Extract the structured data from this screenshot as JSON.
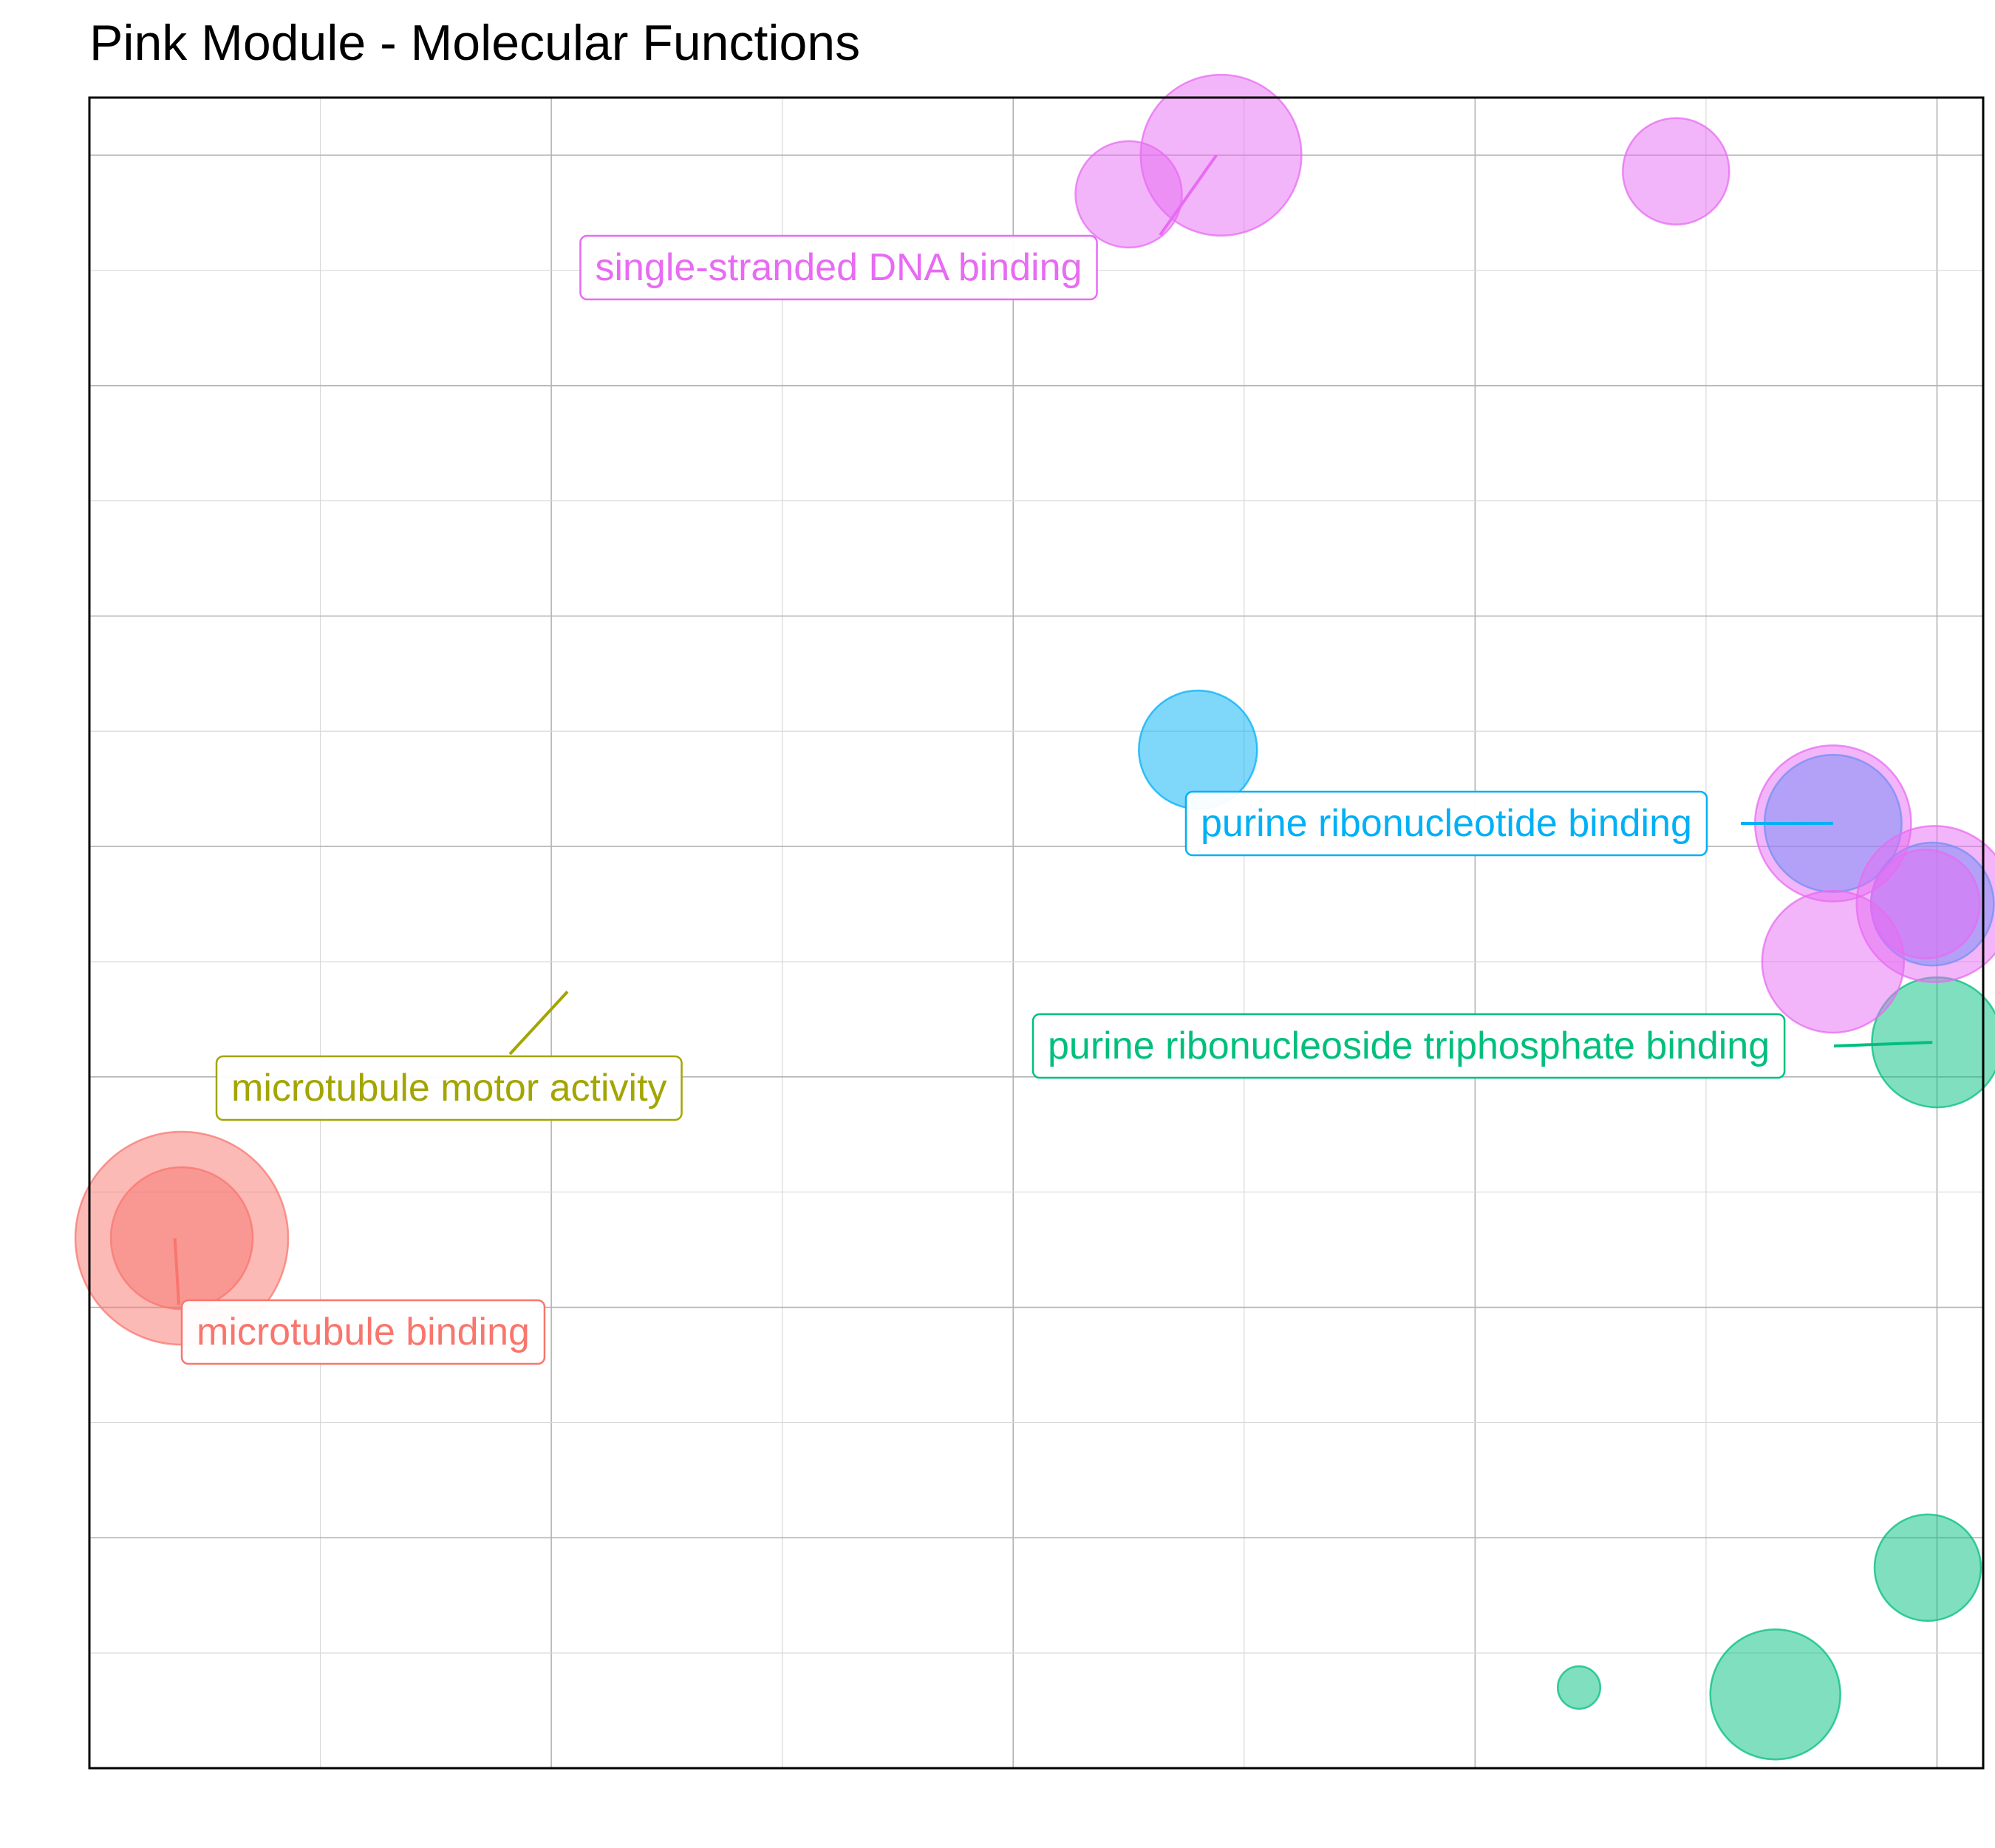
{
  "chart_data": {
    "type": "scatter",
    "title": "Pink Module - Molecular Functions",
    "xlabel": "",
    "ylabel": "",
    "xlim": [
      0,
      8.2
    ],
    "ylim": [
      0,
      7.25
    ],
    "grid": true,
    "legend": "none",
    "colors": {
      "microtubule binding": "#F8766D",
      "microtubule motor activity": "#A3A500",
      "purine ribonucleoside triphosphate binding": "#00BF7D",
      "purine ribonucleotide binding": "#00B0F6",
      "single-stranded DNA binding": "#E76BF3"
    },
    "points": [
      {
        "x": 0.4,
        "y": 2.3,
        "size": 9,
        "group": "microtubule binding"
      },
      {
        "x": 0.4,
        "y": 2.3,
        "size": 6,
        "group": "microtubule binding"
      },
      {
        "x": 8.0,
        "y": 3.15,
        "size": 5.5,
        "group": "purine ribonucleoside triphosphate binding"
      },
      {
        "x": 7.96,
        "y": 0.87,
        "size": 4.5,
        "group": "purine ribonucleoside triphosphate binding"
      },
      {
        "x": 7.3,
        "y": 0.32,
        "size": 5.5,
        "group": "purine ribonucleoside triphosphate binding"
      },
      {
        "x": 6.45,
        "y": 0.35,
        "size": 1.8,
        "group": "purine ribonucleoside triphosphate binding"
      },
      {
        "x": 4.8,
        "y": 4.42,
        "size": 5,
        "group": "purine ribonucleotide binding"
      },
      {
        "x": 7.55,
        "y": 4.1,
        "size": 5.8,
        "group": "purine ribonucleotide binding"
      },
      {
        "x": 7.98,
        "y": 3.75,
        "size": 5.2,
        "group": "purine ribonucleotide binding"
      },
      {
        "x": 4.9,
        "y": 7.0,
        "size": 6.8,
        "group": "single-stranded DNA binding"
      },
      {
        "x": 4.5,
        "y": 6.83,
        "size": 4.5,
        "group": "single-stranded DNA binding"
      },
      {
        "x": 6.87,
        "y": 6.93,
        "size": 4.5,
        "group": "single-stranded DNA binding"
      },
      {
        "x": 7.55,
        "y": 4.1,
        "size": 6.6,
        "group": "single-stranded DNA binding"
      },
      {
        "x": 7.99,
        "y": 3.75,
        "size": 6.6,
        "group": "single-stranded DNA binding"
      },
      {
        "x": 7.95,
        "y": 3.75,
        "size": 4.6,
        "group": "single-stranded DNA binding"
      },
      {
        "x": 7.55,
        "y": 3.5,
        "size": 6.0,
        "group": "single-stranded DNA binding"
      }
    ],
    "labels": [
      {
        "text": "single-stranded DNA binding",
        "group": "single-stranded DNA binding",
        "x": 4.88,
        "y": 7.0
      },
      {
        "text": "purine ribonucleotide binding",
        "group": "purine ribonucleotide binding",
        "x": 7.55,
        "y": 4.1
      },
      {
        "text": "purine ribonucleoside triphosphate binding",
        "group": "purine ribonucleoside triphosphate binding",
        "x": 7.98,
        "y": 3.15
      },
      {
        "text": "microtubule motor activity",
        "group": "microtubule motor activity",
        "x": 2.07,
        "y": 3.37
      },
      {
        "text": "microtubule binding",
        "group": "microtubule binding",
        "x": 0.37,
        "y": 2.3
      }
    ]
  }
}
